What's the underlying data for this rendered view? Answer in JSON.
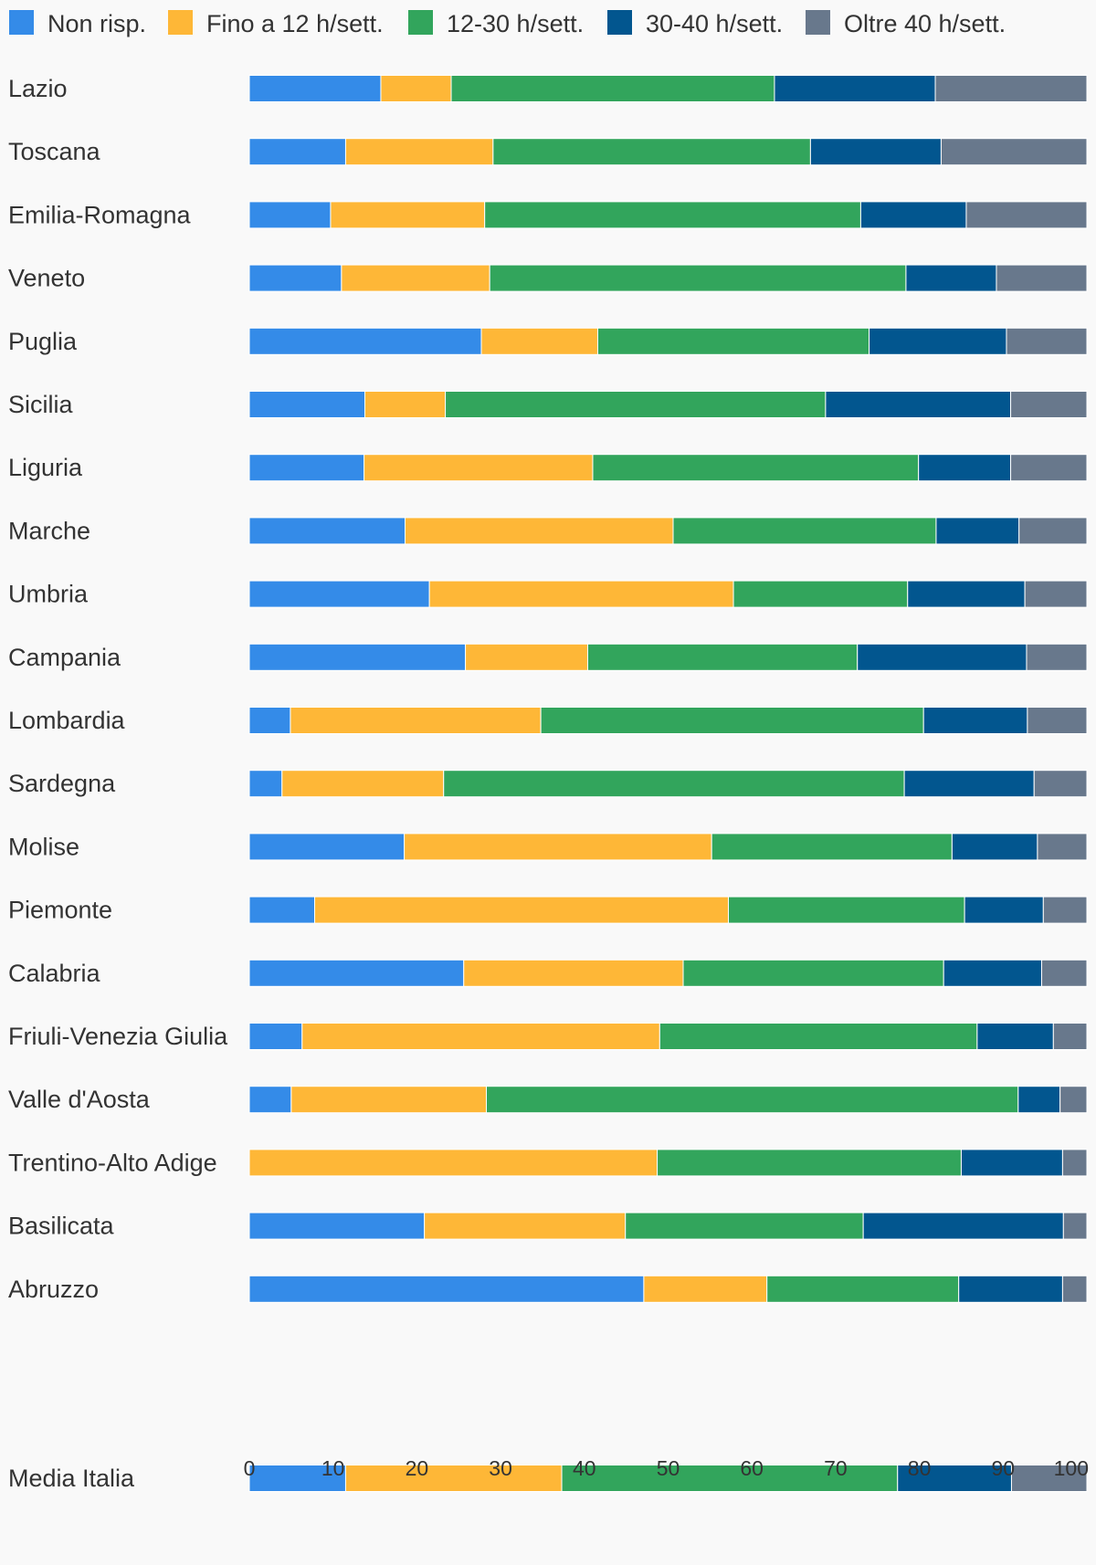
{
  "chart_data": {
    "type": "bar",
    "orientation": "horizontal",
    "stacked": true,
    "legend_position": "top",
    "grid": false,
    "xlim": [
      0,
      100
    ],
    "xticks": [
      0,
      10,
      20,
      30,
      40,
      50,
      60,
      70,
      80,
      90,
      100
    ],
    "categories": [
      "Lazio",
      "Toscana",
      "Emilia-Romagna",
      "Veneto",
      "Puglia",
      "Sicilia",
      "Liguria",
      "Marche",
      "Umbria",
      "Campania",
      "Lombardia",
      "Sardegna",
      "Molise",
      "Piemonte",
      "Calabria",
      "Friuli-Venezia Giulia",
      "Valle d'Aosta",
      "Trentino-Alto Adige",
      "Basilicata",
      "Abruzzo",
      "Media Italia"
    ],
    "series": [
      {
        "name": "Non risp.",
        "color": "#348be8",
        "values": [
          15.7,
          11.5,
          9.7,
          11.0,
          27.7,
          13.8,
          13.7,
          18.6,
          21.5,
          25.8,
          4.9,
          3.9,
          18.5,
          7.8,
          25.6,
          6.3,
          5.0,
          0.0,
          20.9,
          47.1,
          11.5
        ]
      },
      {
        "name": "Fino a 12 h/sett.",
        "color": "#feb737",
        "values": [
          8.4,
          17.6,
          18.4,
          17.7,
          13.9,
          9.6,
          27.3,
          32.0,
          36.3,
          14.6,
          29.9,
          19.3,
          36.7,
          49.4,
          26.2,
          42.7,
          23.3,
          48.7,
          24.0,
          14.7,
          25.8
        ]
      },
      {
        "name": "12-30 h/sett.",
        "color": "#32a55c",
        "values": [
          38.6,
          37.9,
          44.9,
          49.7,
          32.4,
          45.4,
          38.9,
          31.4,
          20.8,
          32.2,
          45.7,
          55.0,
          28.7,
          28.2,
          31.1,
          37.9,
          63.5,
          36.3,
          28.4,
          22.9,
          40.1
        ]
      },
      {
        "name": "30-40 h/sett.",
        "color": "#02568f",
        "values": [
          19.2,
          15.6,
          12.6,
          10.8,
          16.4,
          22.1,
          11.0,
          9.9,
          14.0,
          20.2,
          12.4,
          15.5,
          10.2,
          9.4,
          11.7,
          9.1,
          5.0,
          12.1,
          23.9,
          12.4,
          13.6
        ]
      },
      {
        "name": "Oltre 40 h/sett.",
        "color": "#68788c",
        "values": [
          18.1,
          17.4,
          14.4,
          10.8,
          9.6,
          9.1,
          9.1,
          8.1,
          7.4,
          7.2,
          7.1,
          6.3,
          5.9,
          5.2,
          5.4,
          4.0,
          3.2,
          2.9,
          2.8,
          2.9,
          9.0
        ]
      }
    ]
  }
}
